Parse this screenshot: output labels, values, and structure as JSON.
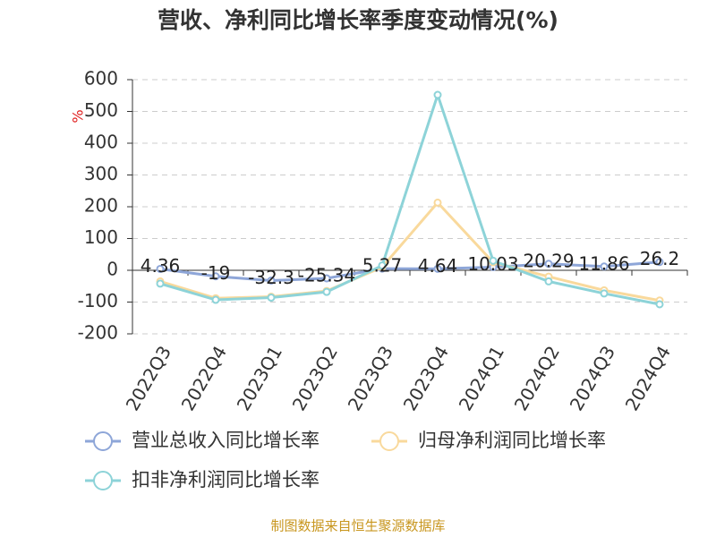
{
  "chart_data": {
    "type": "line",
    "title": "营收、净利同比增长率季度变动情况(%)",
    "y_label": "%",
    "source": "制图数据来自恒生聚源数据库",
    "categories": [
      "2022Q3",
      "2022Q4",
      "2023Q1",
      "2023Q2",
      "2023Q3",
      "2023Q4",
      "2024Q1",
      "2024Q2",
      "2024Q3",
      "2024Q4"
    ],
    "series": [
      {
        "name": "营业总收入同比增长率",
        "color": "#8ea6d8",
        "values": [
          4.36,
          -19,
          -32.3,
          -25.34,
          5.27,
          4.64,
          10.03,
          20.29,
          11.86,
          26.2
        ],
        "show_labels": true
      },
      {
        "name": "归母净利润同比增长率",
        "color": "#f9d99c",
        "values": [
          -35,
          -88,
          -83,
          -65,
          10,
          213,
          25,
          -20,
          -63,
          -95
        ]
      },
      {
        "name": "扣非净利润同比增长率",
        "color": "#8dd3d8",
        "values": [
          -42,
          -93,
          -86,
          -68,
          15,
          552,
          30,
          -35,
          -73,
          -107
        ]
      }
    ],
    "ylim": [
      -200,
      600
    ],
    "yticks": [
      -200,
      -100,
      0,
      100,
      200,
      300,
      400,
      500,
      600
    ],
    "grid": true
  }
}
